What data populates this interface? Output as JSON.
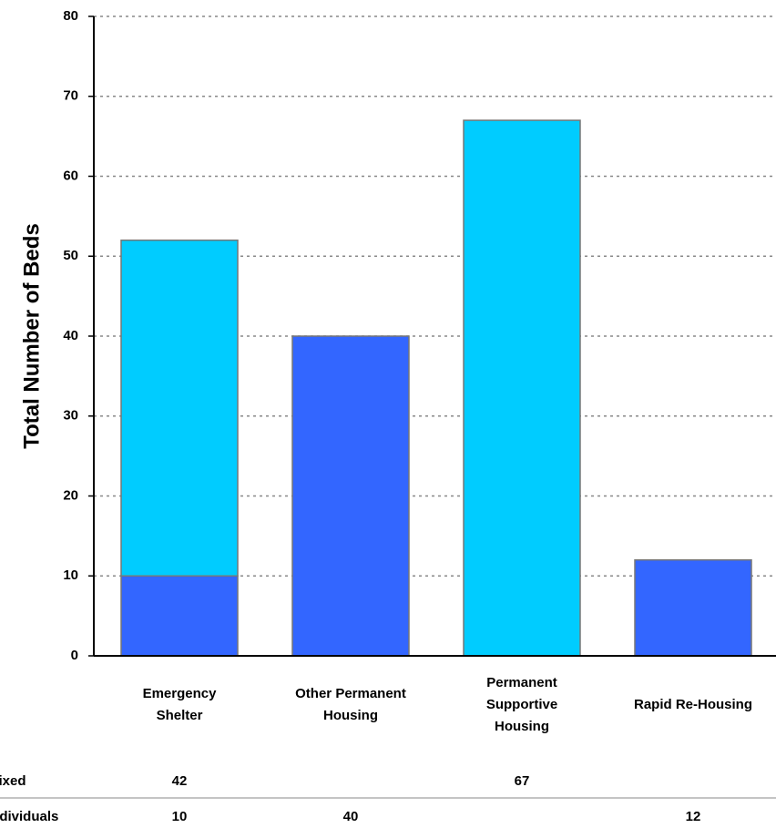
{
  "chart_data": {
    "type": "stacked_bar",
    "y_label": "Total Number of Beds",
    "categories": [
      "Emergency\nShelter",
      "Other Permanent\nHousing",
      "Permanent\nSupportive\nHousing",
      "Rapid Re-Housing"
    ],
    "series": [
      {
        "name": "Individuals",
        "color": "#3366ff",
        "values": [
          10,
          40,
          null,
          12
        ]
      },
      {
        "name": "Mixed",
        "color": "#00ccff",
        "values": [
          42,
          null,
          67,
          null
        ]
      }
    ],
    "table_rows": [
      "Mixed",
      "Individuals"
    ],
    "ylim": [
      0,
      80
    ],
    "yticks": [
      0,
      10,
      20,
      30,
      40,
      50,
      60,
      70,
      80
    ],
    "grid": true
  }
}
